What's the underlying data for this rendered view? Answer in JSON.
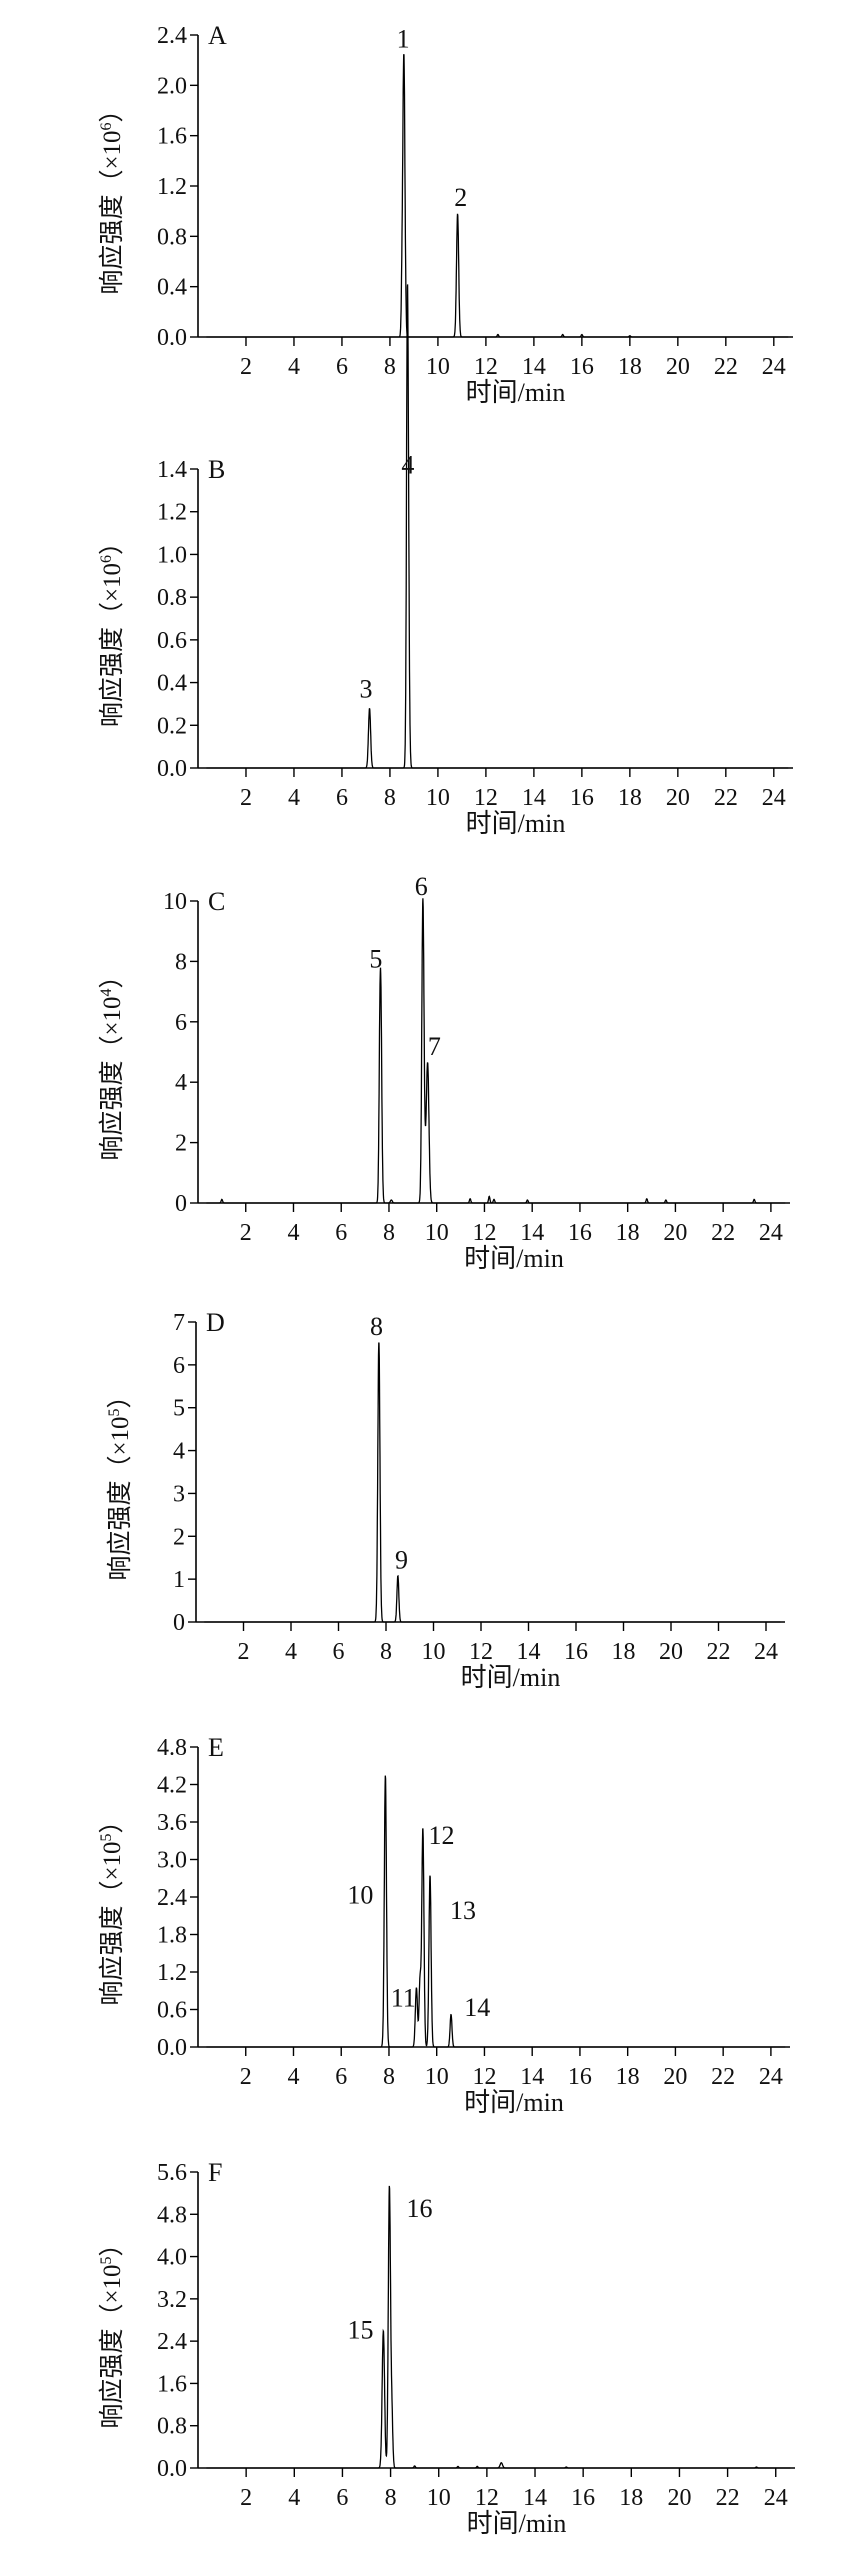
{
  "figure": {
    "xlabel": "时间/min",
    "ylabel_text": "响应强度（×10",
    "ylabel_close": "）"
  },
  "chart_data": [
    {
      "type": "line",
      "panel_label": "A",
      "exponent": "6",
      "xlim": [
        0,
        24.8
      ],
      "ylim": [
        0,
        2.4
      ],
      "x_ticks": [
        2,
        4,
        6,
        8,
        10,
        12,
        14,
        16,
        18,
        20,
        22,
        24
      ],
      "y_ticks": [
        "0.0",
        "0.4",
        "0.8",
        "1.2",
        "1.6",
        "2.0",
        "2.4"
      ],
      "peaks": [
        {
          "rt": 8.58,
          "height": 2.25,
          "width": 0.045
        },
        {
          "rt": 8.5,
          "height": 0.28,
          "width": 0.03
        },
        {
          "rt": 10.82,
          "height": 0.98,
          "width": 0.045
        },
        {
          "rt": 12.5,
          "height": 0.02,
          "width": 0.03
        },
        {
          "rt": 15.2,
          "height": 0.02,
          "width": 0.03
        },
        {
          "rt": 16.0,
          "height": 0.02,
          "width": 0.03
        },
        {
          "rt": 18.0,
          "height": 0.01,
          "width": 0.03
        }
      ],
      "annotations": [
        {
          "label": "1",
          "rt": 8.55,
          "y": 2.3
        },
        {
          "label": "2",
          "rt": 10.95,
          "y": 1.04
        }
      ]
    },
    {
      "type": "line",
      "panel_label": "B",
      "exponent": "6",
      "xlim": [
        0,
        24.8
      ],
      "ylim": [
        0,
        1.4
      ],
      "x_ticks": [
        2,
        4,
        6,
        8,
        10,
        12,
        14,
        16,
        18,
        20,
        22,
        24
      ],
      "y_ticks": [
        "0.0",
        "0.2",
        "0.4",
        "0.6",
        "0.8",
        "1.0",
        "1.2",
        "1.4"
      ],
      "peaks": [
        {
          "rt": 7.15,
          "height": 0.28,
          "width": 0.045
        },
        {
          "rt": 8.75,
          "height": 1.32,
          "width": 0.045
        },
        {
          "rt": 8.72,
          "height": 1.12,
          "width": 0.035
        }
      ],
      "annotations": [
        {
          "label": "3",
          "rt": 7.0,
          "y": 0.33
        },
        {
          "label": "4",
          "rt": 8.75,
          "y": 1.38
        }
      ]
    },
    {
      "type": "line",
      "panel_label": "C",
      "exponent": "4",
      "xlim": [
        0,
        24.8
      ],
      "ylim": [
        0,
        10
      ],
      "x_ticks": [
        2,
        4,
        6,
        8,
        10,
        12,
        14,
        16,
        18,
        20,
        22,
        24
      ],
      "y_ticks": [
        "0",
        "2",
        "4",
        "6",
        "8",
        "10"
      ],
      "peaks": [
        {
          "rt": 7.65,
          "height": 7.45,
          "width": 0.045
        },
        {
          "rt": 7.6,
          "height": 1.2,
          "width": 0.03
        },
        {
          "rt": 9.42,
          "height": 9.8,
          "width": 0.045
        },
        {
          "rt": 9.62,
          "height": 4.6,
          "width": 0.055
        },
        {
          "rt": 9.5,
          "height": 1.0,
          "width": 0.05
        },
        {
          "rt": 1.0,
          "height": 0.12,
          "width": 0.03
        },
        {
          "rt": 8.1,
          "height": 0.1,
          "width": 0.04
        },
        {
          "rt": 11.4,
          "height": 0.14,
          "width": 0.03
        },
        {
          "rt": 12.2,
          "height": 0.22,
          "width": 0.03
        },
        {
          "rt": 12.4,
          "height": 0.12,
          "width": 0.03
        },
        {
          "rt": 13.8,
          "height": 0.1,
          "width": 0.03
        },
        {
          "rt": 18.8,
          "height": 0.14,
          "width": 0.03
        },
        {
          "rt": 19.6,
          "height": 0.1,
          "width": 0.03
        },
        {
          "rt": 23.3,
          "height": 0.12,
          "width": 0.03
        }
      ],
      "annotations": [
        {
          "label": "5",
          "rt": 7.45,
          "y": 7.8
        },
        {
          "label": "6",
          "rt": 9.35,
          "y": 10.2
        },
        {
          "label": "7",
          "rt": 9.9,
          "y": 4.9
        }
      ]
    },
    {
      "type": "line",
      "panel_label": "D",
      "exponent": "5",
      "xlim": [
        0,
        24.8
      ],
      "ylim": [
        0,
        7
      ],
      "x_ticks": [
        2,
        4,
        6,
        8,
        10,
        12,
        14,
        16,
        18,
        20,
        22,
        24
      ],
      "y_ticks": [
        "0",
        "1",
        "2",
        "3",
        "4",
        "5",
        "6",
        "7"
      ],
      "peaks": [
        {
          "rt": 7.7,
          "height": 6.55,
          "width": 0.045
        },
        {
          "rt": 8.5,
          "height": 1.08,
          "width": 0.04
        }
      ],
      "annotations": [
        {
          "label": "8",
          "rt": 7.6,
          "y": 6.7
        },
        {
          "label": "9",
          "rt": 8.65,
          "y": 1.25
        }
      ]
    },
    {
      "type": "line",
      "panel_label": "E",
      "exponent": "5",
      "xlim": [
        0,
        24.8
      ],
      "ylim": [
        0,
        4.8
      ],
      "x_ticks": [
        2,
        4,
        6,
        8,
        10,
        12,
        14,
        16,
        18,
        20,
        22,
        24
      ],
      "y_ticks": [
        "0.0",
        "0.6",
        "1.2",
        "1.8",
        "2.4",
        "3.0",
        "3.6",
        "4.2",
        "4.8"
      ],
      "peaks": [
        {
          "rt": 7.85,
          "height": 4.35,
          "width": 0.045
        },
        {
          "rt": 9.15,
          "height": 0.95,
          "width": 0.045
        },
        {
          "rt": 9.3,
          "height": 1.05,
          "width": 0.04
        },
        {
          "rt": 9.42,
          "height": 3.5,
          "width": 0.045
        },
        {
          "rt": 9.72,
          "height": 2.75,
          "width": 0.045
        },
        {
          "rt": 10.6,
          "height": 0.52,
          "width": 0.04
        }
      ],
      "annotations": [
        {
          "label": "10",
          "rt": 6.8,
          "y": 2.3
        },
        {
          "label": "11",
          "rt": 8.6,
          "y": 0.65
        },
        {
          "label": "12",
          "rt": 10.2,
          "y": 3.25
        },
        {
          "label": "13",
          "rt": 11.1,
          "y": 2.05
        },
        {
          "label": "14",
          "rt": 11.7,
          "y": 0.5
        }
      ]
    },
    {
      "type": "line",
      "panel_label": "F",
      "exponent": "5",
      "xlim": [
        0,
        24.8
      ],
      "ylim": [
        0,
        5.6
      ],
      "x_ticks": [
        2,
        4,
        6,
        8,
        10,
        12,
        14,
        16,
        18,
        20,
        22,
        24
      ],
      "y_ticks": [
        "0.0",
        "0.8",
        "1.6",
        "2.4",
        "3.2",
        "4.0",
        "4.8",
        "5.6"
      ],
      "peaks": [
        {
          "rt": 7.7,
          "height": 2.6,
          "width": 0.05
        },
        {
          "rt": 7.95,
          "height": 5.3,
          "width": 0.045
        },
        {
          "rt": 8.05,
          "height": 1.05,
          "width": 0.04
        },
        {
          "rt": 9.0,
          "height": 0.04,
          "width": 0.03
        },
        {
          "rt": 10.8,
          "height": 0.03,
          "width": 0.03
        },
        {
          "rt": 11.6,
          "height": 0.03,
          "width": 0.03
        },
        {
          "rt": 12.6,
          "height": 0.1,
          "width": 0.05
        },
        {
          "rt": 15.3,
          "height": 0.02,
          "width": 0.03
        },
        {
          "rt": 23.2,
          "height": 0.02,
          "width": 0.03
        }
      ],
      "annotations": [
        {
          "label": "15",
          "rt": 6.75,
          "y": 2.45
        },
        {
          "label": "16",
          "rt": 9.2,
          "y": 4.75
        }
      ]
    }
  ]
}
